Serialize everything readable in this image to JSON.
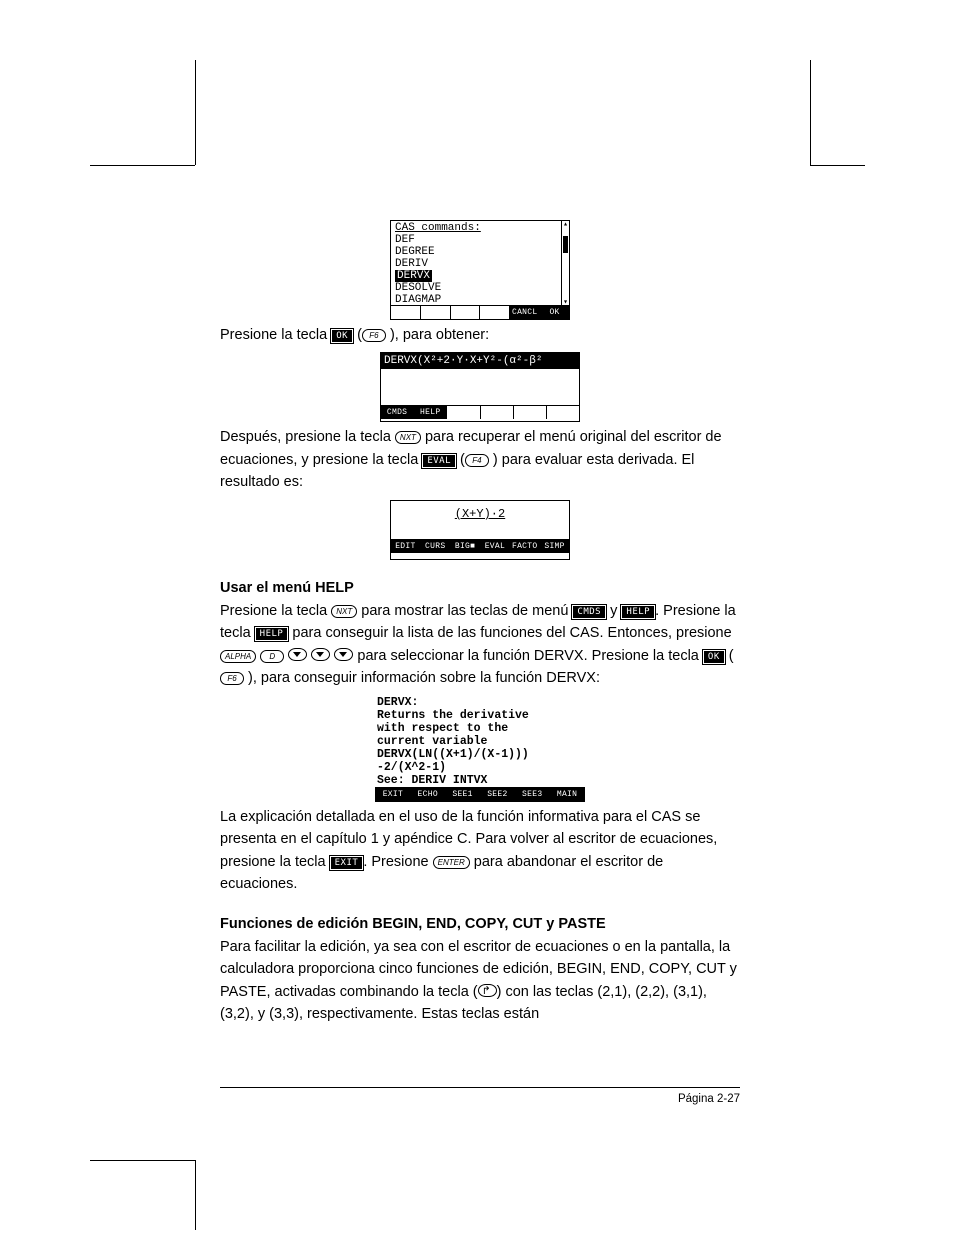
{
  "calc1": {
    "title": "CAS commands:",
    "items": [
      "DEF",
      "DEGREE",
      "DERIV",
      "DERVX",
      "DESOLVE",
      "DIAGMAP"
    ],
    "highlight_index": 3,
    "menu": [
      "",
      "",
      "",
      "",
      "CANCL",
      "OK"
    ],
    "scroll_bar_top_pct": 18,
    "scroll_bar_height_pct": 20
  },
  "para1_a": "Presione la tecla",
  "para1_softkey": "OK",
  "para1_key": "F6",
  "para1_b": "), para obtener:",
  "calc2": {
    "equation": "DERVX(X²+2·Y·X+Y²-(α²-β²",
    "menu": [
      "CMDS",
      "HELP",
      "",
      "",
      "",
      ""
    ]
  },
  "para2_a": "Después, presione la tecla",
  "para2_key1": "NXT",
  "para2_b": "para recuperar el menú original del escritor de ecuaciones, y presione la tecla",
  "para2_softkey": "EVAL",
  "para2_key2": "F4",
  "para2_c": ") para evaluar esta derivada. El resultado es:",
  "calc3": {
    "equation": "(X+Y)·2",
    "menu": [
      "EDIT",
      "CURS",
      "BIG■",
      "EVAL",
      "FACTO",
      "SIMP"
    ]
  },
  "heading1": "Usar el menú HELP",
  "para3_a": "Presione la tecla",
  "para3_key1": "NXT",
  "para3_b": "para mostrar las teclas de menú",
  "para3_sk1": "CMDS",
  "para3_c": "y",
  "para3_sk2": "HELP",
  "para3_d": ".  Presione la tecla",
  "para3_sk3": "HELP",
  "para3_e": "para conseguir la lista de las funciones del CAS.  Entonces, presione",
  "para3_key_alpha": "ALPHA",
  "para3_key_d": "D",
  "para3_f": "para seleccionar la función DERVX. Presione la tecla",
  "para3_sk4": "OK",
  "para3_key_f6": "F6",
  "para3_g": "), para conseguir información sobre la función DERVX:",
  "calc4": {
    "lines": [
      "DERVX:",
      "Returns the derivative",
      "with respect to the",
      "current variable",
      "DERVX(LN((X+1)/(X-1)))",
      "            -2/(X^2-1)",
      "See: DERIV INTVX"
    ],
    "menu": [
      "EXIT",
      "ECHO",
      "SEE1",
      "SEE2",
      "SEE3",
      "MAIN"
    ]
  },
  "para4_a": "La explicación detallada en el uso de la función informativa para el CAS se presenta en el capítulo 1 y apéndice C. Para volver al escritor de ecuaciones, presione la tecla",
  "para4_sk": "EXIT",
  "para4_b": ".  Presione",
  "para4_key": "ENTER",
  "para4_c": "para abandonar el escritor de ecuaciones.",
  "heading2": "Funciones de edición BEGIN, END, COPY, CUT y PASTE",
  "para5_a": "Para facilitar la edición, ya sea con el escritor de ecuaciones o en la pantalla, la calculadora proporciona cinco funciones de edición, BEGIN, END, COPY, CUT y PASTE, activadas combinando la tecla (",
  "para5_b": ") con las teclas (2,1), (2,2), (3,1), (3,2), y (3,3), respectivamente.   Estas teclas están",
  "footer": "Página 2-27"
}
